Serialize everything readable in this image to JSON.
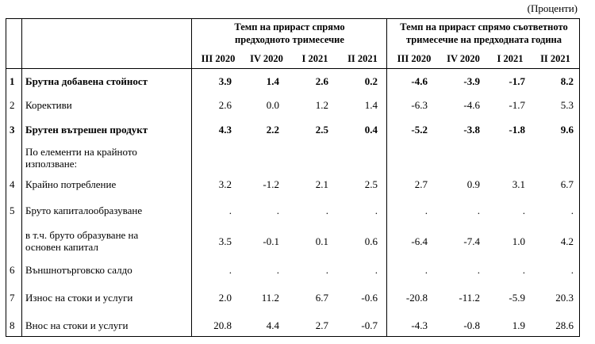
{
  "unit": "(Проценти)",
  "group_headers": [
    "Темп на прираст спрямо предходното тримесечие",
    "Темп на прираст спрямо съответното тримесечие на предходната година"
  ],
  "columns": [
    "III 2020",
    "IV 2020",
    "I 2021",
    "II 2021",
    "III 2020",
    "IV 2020",
    "I 2021",
    "II 2021"
  ],
  "rows": [
    {
      "num": "1",
      "label": "Брутна добавена стойност",
      "bold": true,
      "values": [
        "3.9",
        "1.4",
        "2.6",
        "0.2",
        "-4.6",
        "-3.9",
        "-1.7",
        "8.2"
      ]
    },
    {
      "num": "2",
      "label": "Корективи",
      "bold": false,
      "values": [
        "2.6",
        "0.0",
        "1.2",
        "1.4",
        "-6.3",
        "-4.6",
        "-1.7",
        "5.3"
      ]
    },
    {
      "num": "3",
      "label": "Брутен вътрешен продукт",
      "bold": true,
      "values": [
        "4.3",
        "2.2",
        "2.5",
        "0.4",
        "-5.2",
        "-3.8",
        "-1.8",
        "9.6"
      ]
    },
    {
      "num": "",
      "label": "По елементи на крайното използване:",
      "bold": false,
      "values": [
        "",
        "",
        "",
        "",
        "",
        "",
        "",
        ""
      ]
    },
    {
      "num": "4",
      "label": "Крайно потребление",
      "bold": false,
      "values": [
        "3.2",
        "-1.2",
        "2.1",
        "2.5",
        "2.7",
        "0.9",
        "3.1",
        "6.7"
      ]
    },
    {
      "num": "5",
      "label": "Бруто капиталообразуване",
      "bold": false,
      "values": [
        ".",
        ".",
        ".",
        ".",
        ".",
        ".",
        ".",
        "."
      ]
    },
    {
      "num": "",
      "label": "в т.ч. бруто образуване на основен капитал",
      "bold": false,
      "values": [
        "3.5",
        "-0.1",
        "0.1",
        "0.6",
        "-6.4",
        "-7.4",
        "1.0",
        "4.2"
      ]
    },
    {
      "num": "6",
      "label": "Външнотърговско салдо",
      "bold": false,
      "values": [
        ".",
        ".",
        ".",
        ".",
        ".",
        ".",
        ".",
        "."
      ]
    },
    {
      "num": "7",
      "label": "Износ на стоки и услуги",
      "bold": false,
      "values": [
        "2.0",
        "11.2",
        "6.7",
        "-0.6",
        "-20.8",
        "-11.2",
        "-5.9",
        "20.3"
      ]
    },
    {
      "num": "8",
      "label": "Внос на стоки и услуги",
      "bold": false,
      "values": [
        "20.8",
        "4.4",
        "2.7",
        "-0.7",
        "-4.3",
        "-0.8",
        "1.9",
        "28.6"
      ]
    }
  ]
}
